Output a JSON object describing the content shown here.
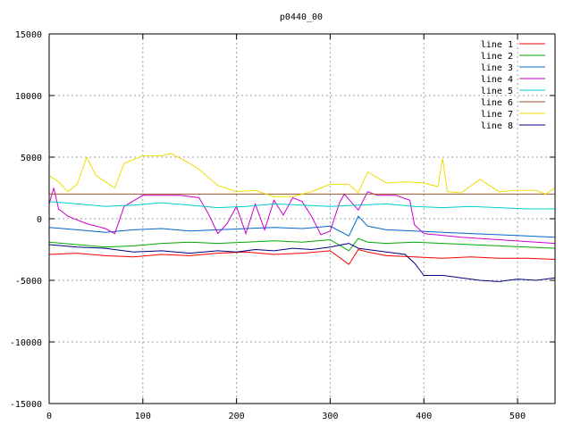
{
  "chart_data": {
    "type": "line",
    "title": "p0440_00",
    "xlabel": "",
    "ylabel": "",
    "xlim": [
      0,
      540
    ],
    "ylim": [
      -15000,
      15000
    ],
    "x_ticks": [
      0,
      100,
      200,
      300,
      400,
      500
    ],
    "x_tick_labels": [
      "0",
      "100",
      "200",
      "300",
      "400",
      "500"
    ],
    "y_ticks": [
      -15000,
      -10000,
      -5000,
      0,
      5000,
      10000,
      15000
    ],
    "y_tick_labels": [
      "-15000",
      "-10000",
      "-5000",
      "0",
      "5000",
      "10000",
      "15000"
    ],
    "grid": true,
    "legend_position": "top-right",
    "series": [
      {
        "name": "line 1",
        "color": "#ff0000",
        "x": [
          0,
          30,
          60,
          90,
          120,
          150,
          180,
          210,
          240,
          270,
          300,
          320,
          330,
          340,
          360,
          390,
          420,
          450,
          480,
          510,
          540
        ],
        "y": [
          -2900,
          -2800,
          -3000,
          -3100,
          -2900,
          -3000,
          -2800,
          -2700,
          -2900,
          -2800,
          -2600,
          -3700,
          -2500,
          -2700,
          -3000,
          -3100,
          -3200,
          -3100,
          -3200,
          -3200,
          -3300
        ]
      },
      {
        "name": "line 2",
        "color": "#00aa00",
        "x": [
          0,
          30,
          60,
          90,
          120,
          150,
          180,
          210,
          240,
          270,
          300,
          320,
          330,
          340,
          360,
          390,
          420,
          450,
          480,
          510,
          540
        ],
        "y": [
          -1900,
          -2100,
          -2300,
          -2200,
          -2000,
          -1900,
          -2000,
          -1900,
          -1800,
          -1900,
          -1700,
          -2600,
          -1600,
          -1900,
          -2000,
          -1900,
          -2000,
          -2100,
          -2200,
          -2300,
          -2400
        ]
      },
      {
        "name": "line 3",
        "color": "#0066cc",
        "x": [
          0,
          30,
          60,
          90,
          120,
          150,
          180,
          210,
          240,
          270,
          300,
          320,
          330,
          340,
          360,
          390,
          420,
          450,
          480,
          510,
          540
        ],
        "y": [
          -700,
          -900,
          -1100,
          -900,
          -800,
          -1000,
          -900,
          -800,
          -700,
          -800,
          -600,
          -1400,
          200,
          -600,
          -900,
          -1000,
          -1100,
          -1200,
          -1300,
          -1400,
          -1500
        ]
      },
      {
        "name": "line 4",
        "color": "#cc00cc",
        "x": [
          0,
          5,
          10,
          20,
          40,
          60,
          70,
          80,
          100,
          140,
          160,
          170,
          180,
          190,
          200,
          210,
          220,
          230,
          240,
          250,
          260,
          270,
          280,
          290,
          300,
          310,
          315,
          330,
          340,
          350,
          370,
          385,
          390,
          400,
          440,
          480,
          540
        ],
        "y": [
          1200,
          2500,
          800,
          200,
          -400,
          -800,
          -1200,
          1000,
          1900,
          1900,
          1700,
          400,
          -1200,
          -400,
          1000,
          -1200,
          1200,
          -900,
          1500,
          300,
          1700,
          1400,
          200,
          -1300,
          -1000,
          1300,
          2000,
          700,
          2200,
          1900,
          1900,
          1500,
          -500,
          -1200,
          -1500,
          -1700,
          -2000
        ]
      },
      {
        "name": "line 5",
        "color": "#00cccc",
        "x": [
          0,
          30,
          60,
          90,
          120,
          150,
          180,
          210,
          240,
          270,
          300,
          330,
          360,
          390,
          420,
          450,
          480,
          510,
          540
        ],
        "y": [
          1400,
          1200,
          1000,
          1100,
          1300,
          1100,
          900,
          1000,
          1200,
          1100,
          1000,
          1100,
          1200,
          1000,
          900,
          1000,
          900,
          800,
          800
        ]
      },
      {
        "name": "line 6",
        "color": "#a0522d",
        "x": [
          0,
          100,
          200,
          300,
          400,
          540
        ],
        "y": [
          2000,
          2000,
          2000,
          2000,
          2000,
          2000
        ]
      },
      {
        "name": "line 7",
        "color": "#eedd00",
        "x": [
          0,
          10,
          20,
          30,
          40,
          50,
          60,
          70,
          80,
          100,
          120,
          130,
          150,
          160,
          180,
          200,
          220,
          240,
          260,
          280,
          300,
          320,
          330,
          340,
          360,
          380,
          400,
          415,
          420,
          425,
          440,
          460,
          480,
          500,
          520,
          530,
          540
        ],
        "y": [
          3500,
          3000,
          2200,
          2800,
          5000,
          3500,
          3000,
          2500,
          4500,
          5100,
          5100,
          5300,
          4500,
          4000,
          2700,
          2200,
          2300,
          1800,
          1800,
          2200,
          2800,
          2800,
          2100,
          3800,
          2900,
          3000,
          2900,
          2600,
          4900,
          2200,
          2100,
          3200,
          2200,
          2300,
          2300,
          2000,
          2500
        ]
      },
      {
        "name": "line 8",
        "color": "#000080",
        "x": [
          0,
          30,
          60,
          90,
          120,
          150,
          180,
          200,
          220,
          240,
          260,
          280,
          300,
          320,
          330,
          340,
          360,
          380,
          390,
          400,
          420,
          440,
          460,
          480,
          500,
          520,
          540
        ],
        "y": [
          -2100,
          -2300,
          -2400,
          -2700,
          -2600,
          -2800,
          -2600,
          -2700,
          -2500,
          -2600,
          -2400,
          -2500,
          -2300,
          -2000,
          -2400,
          -2500,
          -2700,
          -2900,
          -3600,
          -4600,
          -4600,
          -4800,
          -5000,
          -5100,
          -4900,
          -5000,
          -4800
        ]
      }
    ]
  }
}
